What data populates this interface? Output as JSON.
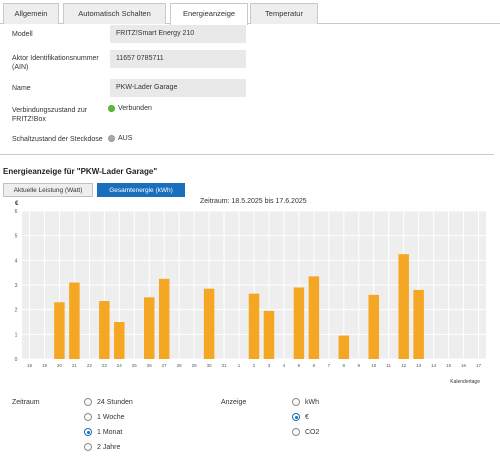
{
  "tabs": [
    "Allgemein",
    "Automatisch Schalten",
    "Energieanzeige",
    "Temperatur"
  ],
  "details": {
    "modell_label": "Modell",
    "modell_value": "FRITZ!Smart Energy 210",
    "ain_label_1": "Aktor Identifikationsnummer",
    "ain_label_2": "(AIN)",
    "ain_value": "11657 0785711",
    "name_label": "Name",
    "name_value": "PKW-Lader Garage",
    "verbindung_label_1": "Verbindungszustand zur",
    "verbindung_label_2": "FRITZ!Box",
    "verbindung_value": "Verbunden",
    "schalt_label": "Schaltzustand der Steckdose",
    "schalt_value": "AUS"
  },
  "energy": {
    "title": "Energieanzeige für \"PKW-Lader Garage\"",
    "btn_leistung": "Aktuelle Leistung (Watt)",
    "btn_gesamt": "Gesamtenergie (kWh)",
    "zeitraum_text": "Zeitraum: 18.5.2025 bis 17.6.2025"
  },
  "chart_data": {
    "type": "bar",
    "ylabel": "€",
    "xlabel": "Kalendertage",
    "ylim": [
      0,
      6
    ],
    "yticks": [
      0,
      1,
      2,
      3,
      4,
      5,
      6
    ],
    "grid": true,
    "bar_color": "#f5a623",
    "categories": [
      "18",
      "19",
      "20",
      "21",
      "22",
      "23",
      "24",
      "25",
      "26",
      "27",
      "28",
      "29",
      "30",
      "31",
      "1",
      "2",
      "3",
      "4",
      "5",
      "6",
      "7",
      "8",
      "9",
      "10",
      "11",
      "12",
      "13",
      "14",
      "15",
      "16",
      "17"
    ],
    "values": [
      0,
      0,
      2.3,
      3.1,
      0,
      2.35,
      1.5,
      0,
      2.5,
      3.25,
      0,
      0,
      2.85,
      0,
      0,
      2.65,
      1.95,
      0,
      2.9,
      3.35,
      0,
      0.95,
      0,
      2.6,
      0,
      4.25,
      2.8,
      0,
      0,
      0,
      0
    ]
  },
  "form": {
    "zeitraum_label": "Zeitraum",
    "anzeige_label": "Anzeige",
    "zeitraum_options": [
      "24 Stunden",
      "1 Woche",
      "1 Monat",
      "2 Jahre"
    ],
    "zeitraum_selected": 2,
    "anzeige_options": [
      "kWh",
      "€",
      "CO2"
    ],
    "anzeige_selected": 1
  }
}
